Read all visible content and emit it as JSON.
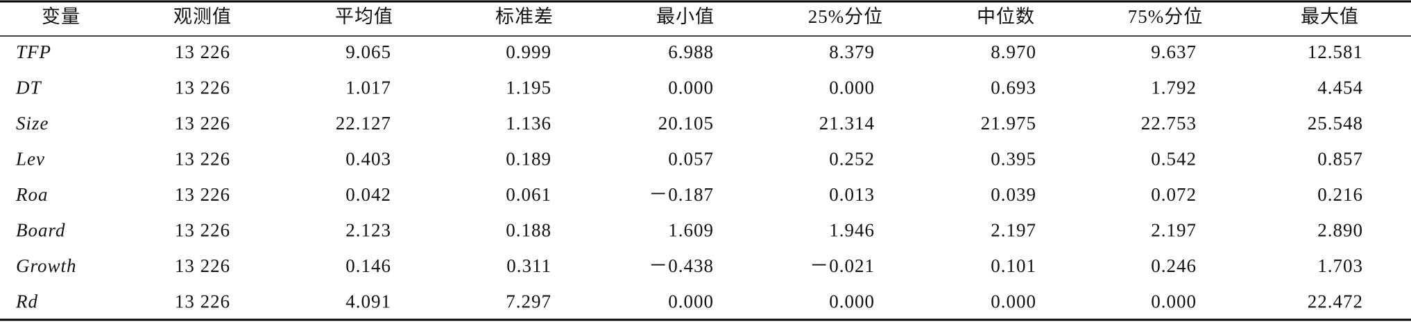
{
  "table": {
    "header": [
      "变量",
      "观测值",
      "平均值",
      "标准差",
      "最小值",
      "25%分位",
      "中位数",
      "75%分位",
      "最大值"
    ],
    "rows": [
      [
        "TFP",
        "13 226",
        "9.065",
        "0.999",
        "6.988",
        "8.379",
        "8.970",
        "9.637",
        "12.581"
      ],
      [
        "DT",
        "13 226",
        "1.017",
        "1.195",
        "0.000",
        "0.000",
        "0.693",
        "1.792",
        "4.454"
      ],
      [
        "Size",
        "13 226",
        "22.127",
        "1.136",
        "20.105",
        "21.314",
        "21.975",
        "22.753",
        "25.548"
      ],
      [
        "Lev",
        "13 226",
        "0.403",
        "0.189",
        "0.057",
        "0.252",
        "0.395",
        "0.542",
        "0.857"
      ],
      [
        "Roa",
        "13 226",
        "0.042",
        "0.061",
        "－0.187",
        "0.013",
        "0.039",
        "0.072",
        "0.216"
      ],
      [
        "Board",
        "13 226",
        "2.123",
        "0.188",
        "1.609",
        "1.946",
        "2.197",
        "2.197",
        "2.890"
      ],
      [
        "Growth",
        "13 226",
        "0.146",
        "0.311",
        "－0.438",
        "－0.021",
        "0.101",
        "0.246",
        "1.703"
      ],
      [
        "Rd",
        "13 226",
        "4.091",
        "7.297",
        "0.000",
        "0.000",
        "0.000",
        "0.000",
        "22.472"
      ]
    ]
  }
}
